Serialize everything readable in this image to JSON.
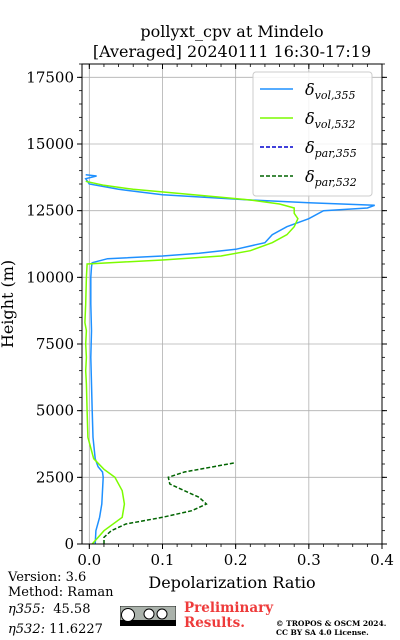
{
  "chart_data": {
    "type": "line",
    "title": "pollyxt_cpv at Mindelo",
    "subtitle": "[Averaged] 20240111 16:30-17:19",
    "xlabel": "Depolarization Ratio",
    "ylabel": "Height (m)",
    "xlim": [
      -0.01,
      0.4
    ],
    "ylim": [
      0,
      18000
    ],
    "x_ticks": [
      0.0,
      0.1,
      0.2,
      0.3,
      0.4
    ],
    "x_tick_labels": [
      "0.0",
      "0.1",
      "0.2",
      "0.3",
      "0.4"
    ],
    "y_ticks": [
      0,
      2500,
      5000,
      7500,
      10000,
      12500,
      15000,
      17500
    ],
    "y_tick_labels": [
      "0",
      "2500",
      "5000",
      "7500",
      "10000",
      "12500",
      "15000",
      "17500"
    ],
    "grid": true,
    "legend_position": "top-right",
    "series": [
      {
        "name": "δvol,355",
        "legend_base": "δ",
        "legend_sub": "vol,355",
        "color": "#1e90ff",
        "style": "solid",
        "points": [
          [
            0.008,
            0
          ],
          [
            0.009,
            500
          ],
          [
            0.014,
            1000
          ],
          [
            0.017,
            1500
          ],
          [
            0.018,
            2000
          ],
          [
            0.019,
            2500
          ],
          [
            0.018,
            2700
          ],
          [
            0.012,
            2900
          ],
          [
            0.008,
            3200
          ],
          [
            0.005,
            4000
          ],
          [
            0.004,
            5000
          ],
          [
            0.003,
            6000
          ],
          [
            0.002,
            7000
          ],
          [
            0.003,
            8000
          ],
          [
            0.002,
            9000
          ],
          [
            0.002,
            10000
          ],
          [
            0.003,
            10400
          ],
          [
            0.004,
            10550
          ],
          [
            0.025,
            10700
          ],
          [
            0.1,
            10800
          ],
          [
            0.15,
            10900
          ],
          [
            0.2,
            11050
          ],
          [
            0.24,
            11300
          ],
          [
            0.25,
            11600
          ],
          [
            0.27,
            11900
          ],
          [
            0.3,
            12200
          ],
          [
            0.32,
            12500
          ],
          [
            0.38,
            12600
          ],
          [
            0.39,
            12700
          ],
          [
            0.3,
            12800
          ],
          [
            0.22,
            12900
          ],
          [
            0.1,
            13100
          ],
          [
            0.04,
            13300
          ],
          [
            0.0,
            13500
          ],
          [
            -0.005,
            13700
          ],
          [
            0.01,
            13800
          ],
          [
            -0.005,
            13850
          ]
        ]
      },
      {
        "name": "δvol,532",
        "legend_base": "δ",
        "legend_sub": "vol,532",
        "color": "#7cfc00",
        "style": "solid",
        "points": [
          [
            0.004,
            0
          ],
          [
            0.02,
            500
          ],
          [
            0.045,
            1000
          ],
          [
            0.048,
            1500
          ],
          [
            0.045,
            2000
          ],
          [
            0.035,
            2500
          ],
          [
            0.02,
            2800
          ],
          [
            0.006,
            3200
          ],
          [
            0.002,
            3600
          ],
          [
            -0.002,
            4000
          ],
          [
            -0.003,
            5000
          ],
          [
            -0.004,
            6000
          ],
          [
            -0.005,
            6500
          ],
          [
            -0.004,
            7000
          ],
          [
            -0.005,
            7500
          ],
          [
            -0.004,
            8000
          ],
          [
            -0.006,
            8300
          ],
          [
            -0.005,
            9000
          ],
          [
            -0.004,
            10000
          ],
          [
            -0.003,
            10500
          ],
          [
            0.05,
            10580
          ],
          [
            0.1,
            10650
          ],
          [
            0.18,
            10800
          ],
          [
            0.22,
            11000
          ],
          [
            0.25,
            11300
          ],
          [
            0.27,
            11600
          ],
          [
            0.28,
            11900
          ],
          [
            0.285,
            12200
          ],
          [
            0.28,
            12400
          ],
          [
            0.28,
            12600
          ],
          [
            0.26,
            12750
          ],
          [
            0.22,
            12900
          ],
          [
            0.18,
            13000
          ],
          [
            0.12,
            13150
          ],
          [
            0.06,
            13300
          ],
          [
            0.02,
            13450
          ],
          [
            -0.005,
            13600
          ]
        ]
      },
      {
        "name": "δpar,355",
        "legend_base": "δ",
        "legend_sub": "par,355",
        "color": "#0000cd",
        "style": "dashed",
        "points": []
      },
      {
        "name": "δpar,532",
        "legend_base": "δ",
        "legend_sub": "par,532",
        "color": "#006400",
        "style": "dashed",
        "points": [
          [
            0.02,
            0
          ],
          [
            0.02,
            250
          ],
          [
            0.03,
            500
          ],
          [
            0.05,
            750
          ],
          [
            0.1,
            1000
          ],
          [
            0.14,
            1250
          ],
          [
            0.16,
            1500
          ],
          [
            0.15,
            1750
          ],
          [
            0.13,
            2000
          ],
          [
            0.11,
            2250
          ],
          [
            0.108,
            2500
          ],
          [
            0.13,
            2700
          ],
          [
            0.16,
            2850
          ],
          [
            0.19,
            3000
          ],
          [
            0.2,
            3050
          ]
        ]
      }
    ]
  },
  "meta": {
    "version": "Version: 3.6",
    "method": "Method: Raman",
    "eta355_label": "η355:",
    "eta355_value": "45.58",
    "eta532_label": "η532:",
    "eta532_value": "11.6227",
    "preliminary_line1": "Preliminary",
    "preliminary_line2": "Results.",
    "copyright_line1": "© TROPOS & OSCM 2024.",
    "copyright_line2": "CC BY SA 4.0 License."
  }
}
